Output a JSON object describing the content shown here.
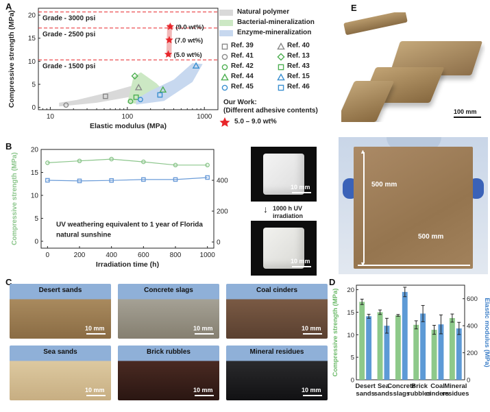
{
  "panelA": {
    "letter": "A",
    "ylabel": "Compressive strength (MPa)",
    "xlabel": "Elastic modulus (MPa)",
    "xticks": [
      "10",
      "100",
      "1000"
    ],
    "yticks": [
      "0",
      "5",
      "10",
      "15",
      "20"
    ],
    "grades": [
      {
        "label": "Grade - 3000 psi",
        "y": 20.7
      },
      {
        "label": "Grade - 2500 psi",
        "y": 17.2
      },
      {
        "label": "Grade - 1500 psi",
        "y": 10.3
      }
    ],
    "ourwork": [
      {
        "label": "(9.0 wt%)",
        "x": 360,
        "y": 17.5
      },
      {
        "label": "(7.0 wt%)",
        "x": 350,
        "y": 14.6
      },
      {
        "label": "(5.0 wt%)",
        "x": 340,
        "y": 11.5
      }
    ],
    "legend": {
      "regions": [
        "Natural polymer",
        "Bacterial-mineralization",
        "Enzyme-mineralization"
      ],
      "refs": [
        [
          "Ref. 39",
          "Ref. 40"
        ],
        [
          "Ref. 41",
          "Ref. 13"
        ],
        [
          "Ref. 42",
          "Ref. 43"
        ],
        [
          "Ref. 44",
          "Ref. 15"
        ],
        [
          "Ref. 45",
          "Ref. 46"
        ]
      ],
      "ourwork_title": "Our Work:",
      "ourwork_sub": "(Different adhesive contents)",
      "ourwork_range": "5.0 – 9.0 wt%"
    },
    "colors": {
      "natural": "#d9d9d9",
      "bacterial": "#cce8c4",
      "enzyme": "#c7d8ef",
      "star": "#e8252a",
      "grade": "#e8252a"
    }
  },
  "panelB": {
    "letter": "B",
    "ylabel_left": "Compressive strength (MPa)",
    "ylabel_right": "Elastic modulus (MPa)",
    "xlabel": "Irradiation time (h)",
    "annotation_line1": "UV weathering equivalent to 1 year of Florida",
    "annotation_line2": "natural sunshine",
    "arrow_label_1": "1000 h UV",
    "arrow_label_2": "irradiation",
    "scale_top": "10 mm",
    "scale_bottom": "10 mm"
  },
  "panelC": {
    "letter": "C",
    "tiles": [
      {
        "label": "Desert sands",
        "scale": "10 mm"
      },
      {
        "label": "Concrete slags",
        "scale": "10 mm"
      },
      {
        "label": "Coal cinders",
        "scale": "10 mm"
      },
      {
        "label": "Sea sands",
        "scale": "10 mm"
      },
      {
        "label": "Brick rubbles",
        "scale": "10 mm"
      },
      {
        "label": "Mineral residues",
        "scale": "10 mm"
      }
    ]
  },
  "panelD": {
    "letter": "D"
  },
  "panelE": {
    "letter": "E",
    "scale": "100 mm",
    "dim_v": "500 mm",
    "dim_h": "500 mm"
  },
  "chart_data": [
    {
      "type": "scatter",
      "id": "A",
      "xlabel": "Elastic modulus (MPa)",
      "ylabel": "Compressive strength (MPa)",
      "xscale": "log",
      "xlim": [
        7,
        1500
      ],
      "ylim": [
        -0.5,
        21.5
      ],
      "series": [
        {
          "name": "Ref. 39",
          "marker": "square-open",
          "color": "#888888",
          "x": [
            52
          ],
          "y": [
            2.4
          ]
        },
        {
          "name": "Ref. 41",
          "marker": "circle-open",
          "color": "#888888",
          "x": [
            16
          ],
          "y": [
            0.5
          ]
        },
        {
          "name": "Ref. 40",
          "marker": "triangle-open",
          "color": "#888888",
          "x": [
            140
          ],
          "y": [
            4.3
          ]
        },
        {
          "name": "Ref. 13",
          "marker": "diamond-open",
          "color": "#4caf50",
          "x": [
            125
          ],
          "y": [
            6.8
          ]
        },
        {
          "name": "Ref. 42",
          "marker": "circle-open",
          "color": "#4caf50",
          "x": [
            110
          ],
          "y": [
            1.3
          ]
        },
        {
          "name": "Ref. 43",
          "marker": "square-open",
          "color": "#4caf50",
          "x": [
            130
          ],
          "y": [
            2.2
          ]
        },
        {
          "name": "Ref. 44",
          "marker": "triangle-open",
          "color": "#4caf50",
          "x": [
            290
          ],
          "y": [
            3.8
          ]
        },
        {
          "name": "Ref. 15",
          "marker": "triangle-open",
          "color": "#3a8fd0",
          "x": [
            780
          ],
          "y": [
            9.0
          ]
        },
        {
          "name": "Ref. 45",
          "marker": "circle-open",
          "color": "#3a8fd0",
          "x": [
            148
          ],
          "y": [
            1.7
          ]
        },
        {
          "name": "Ref. 46",
          "marker": "square-open",
          "color": "#3a8fd0",
          "x": [
            265
          ],
          "y": [
            2.7
          ]
        },
        {
          "name": "5.0 – 9.0 wt%",
          "marker": "star",
          "color": "#e8252a",
          "x": [
            340,
            350,
            360
          ],
          "y": [
            11.5,
            14.6,
            17.5
          ]
        }
      ],
      "hlines": [
        20.7,
        17.2,
        10.3
      ],
      "grid": false,
      "legend": "right"
    },
    {
      "type": "line",
      "id": "B",
      "xlabel": "Irradiation time (h)",
      "ylabel": "Compressive strength (MPa)",
      "ylabel_right": "Elastic modulus (MPa)",
      "x": [
        0,
        200,
        400,
        600,
        800,
        1000
      ],
      "xticks": [
        0,
        200,
        400,
        600,
        800,
        1000
      ],
      "xlim": [
        -40,
        1040
      ],
      "ylim": [
        -1.5,
        20
      ],
      "ylim_right": [
        -40,
        600
      ],
      "yticks": [
        0,
        5,
        10,
        15,
        20
      ],
      "yticks_right": [
        0,
        200,
        400
      ],
      "series": [
        {
          "name": "Compressive strength",
          "axis": "left",
          "marker": "circle-open",
          "color": "#8cc68c",
          "values": [
            17.1,
            17.5,
            17.9,
            17.3,
            16.6,
            16.6
          ]
        },
        {
          "name": "Elastic modulus",
          "axis": "right",
          "marker": "square-open",
          "color": "#6a9bd8",
          "values": [
            400,
            396,
            399,
            405,
            405,
            418
          ]
        }
      ],
      "grid": false
    },
    {
      "type": "bar",
      "id": "D",
      "ylabel": "Compressive strength (MPa)",
      "ylabel_right": "Elastic modulus (MPa)",
      "categories": [
        "Desert sands",
        "Sea sands",
        "Concrete slags",
        "Brick rubbles",
        "Coal cinders",
        "Mineral residues"
      ],
      "ylim": [
        0,
        21
      ],
      "yticks": [
        0,
        5,
        10,
        15,
        20
      ],
      "ylim_right": [
        0,
        700
      ],
      "yticks_right": [
        0,
        200,
        400,
        600
      ],
      "series": [
        {
          "name": "Compressive strength",
          "axis": "left",
          "color": "#8ec98a",
          "values": [
            17.3,
            15.0,
            14.3,
            12.2,
            11.1,
            13.7
          ],
          "errors": [
            0.6,
            0.5,
            0.2,
            0.9,
            1.0,
            0.9
          ]
        },
        {
          "name": "Elastic modulus",
          "axis": "right",
          "color": "#5d9ad6",
          "values": [
            470,
            400,
            650,
            490,
            410,
            380
          ],
          "errors": [
            15,
            55,
            35,
            60,
            70,
            45
          ]
        }
      ],
      "grid": false
    }
  ]
}
